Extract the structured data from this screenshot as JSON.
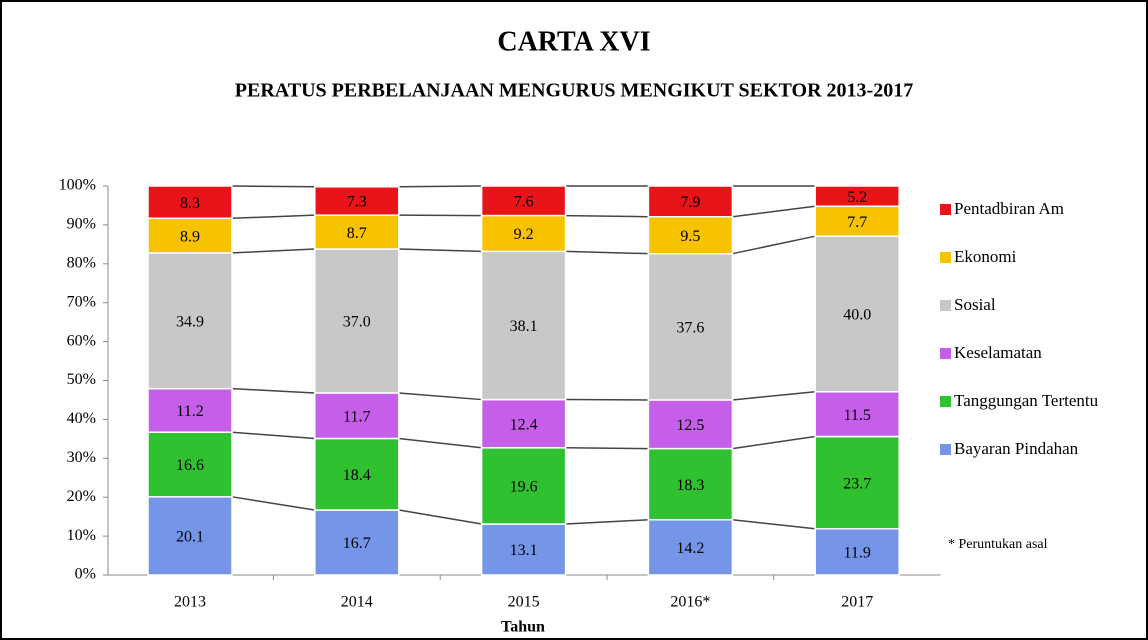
{
  "chart_data": {
    "type": "stacked_bar",
    "title": "CARTA XVI",
    "subtitle": "PERATUS PERBELANJAAN MENGURUS MENGIKUT SEKTOR 2013-2017",
    "x_label": "Tahun",
    "annotation": "* Peruntukan asal",
    "categories": [
      "2013",
      "2014",
      "2015",
      "2016*",
      "2017"
    ],
    "ylim": [
      0,
      100
    ],
    "yticks": [
      {
        "value": 0,
        "label": "0%"
      },
      {
        "value": 10,
        "label": "10%"
      },
      {
        "value": 20,
        "label": "20%"
      },
      {
        "value": 30,
        "label": "30%"
      },
      {
        "value": 40,
        "label": "40%"
      },
      {
        "value": 50,
        "label": "50%"
      },
      {
        "value": 60,
        "label": "60%"
      },
      {
        "value": 70,
        "label": "70%"
      },
      {
        "value": 80,
        "label": "80%"
      },
      {
        "value": 90,
        "label": "90%"
      },
      {
        "value": 100,
        "label": "100%"
      }
    ],
    "legend": "right",
    "series": [
      {
        "name": "Bayaran Pindahan",
        "color": "#7596e8",
        "values": [
          20.1,
          16.7,
          13.1,
          14.2,
          11.9
        ],
        "value_labels": [
          "20.1",
          "16.7",
          "13.1",
          "14.2",
          "11.9"
        ]
      },
      {
        "name": "Tanggungan Tertentu",
        "color": "#2fc12f",
        "values": [
          16.6,
          18.4,
          19.6,
          18.3,
          23.7
        ],
        "value_labels": [
          "16.6",
          "18.4",
          "19.6",
          "18.3",
          "23.7"
        ]
      },
      {
        "name": "Keselamatan",
        "color": "#c55ee8",
        "values": [
          11.2,
          11.7,
          12.4,
          12.5,
          11.5
        ],
        "value_labels": [
          "11.2",
          "11.7",
          "12.4",
          "12.5",
          "11.5"
        ]
      },
      {
        "name": "Sosial",
        "color": "#c8c8c8",
        "values": [
          34.9,
          37.0,
          38.1,
          37.6,
          40.0
        ],
        "value_labels": [
          "34.9",
          "37.0",
          "38.1",
          "37.6",
          "40.0"
        ]
      },
      {
        "name": "Ekonomi",
        "color": "#f7c200",
        "values": [
          8.9,
          8.7,
          9.2,
          9.5,
          7.7
        ],
        "value_labels": [
          "8.9",
          "8.7",
          "9.2",
          "9.5",
          "7.7"
        ]
      },
      {
        "name": "Pentadbiran Am",
        "color": "#e8141a",
        "values": [
          8.3,
          7.3,
          7.6,
          7.9,
          5.2
        ],
        "value_labels": [
          "8.3",
          "7.3",
          "7.6",
          "7.9",
          "5.2"
        ]
      }
    ]
  }
}
